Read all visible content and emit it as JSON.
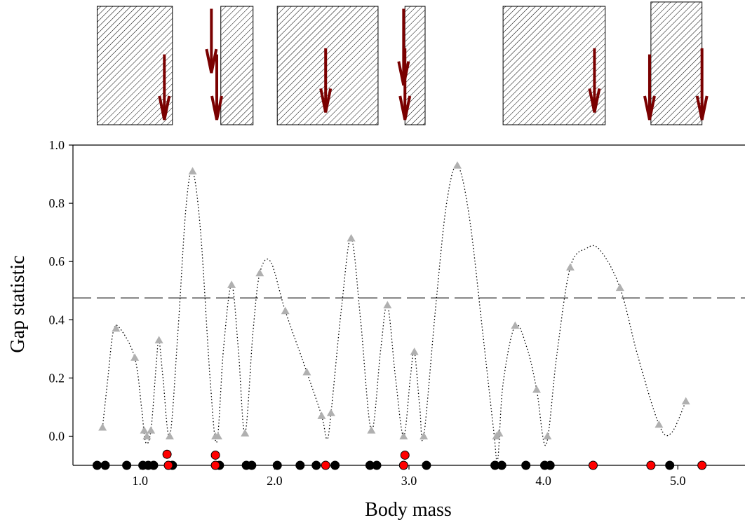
{
  "chart_data": {
    "type": "scatter",
    "xlabel": "Body mass",
    "ylabel": "Gap statistic",
    "xlim": [
      0.5,
      5.5
    ],
    "ylim": [
      -0.1,
      1.0
    ],
    "x_ticks": [
      1.0,
      2.0,
      3.0,
      4.0,
      5.0
    ],
    "x_tick_labels": [
      "1.0",
      "2.0",
      "3.0",
      "4.0",
      "5.0"
    ],
    "y_ticks": [
      0.0,
      0.2,
      0.4,
      0.6,
      0.8,
      1.0
    ],
    "y_tick_labels": [
      "0.0",
      "0.2",
      "0.4",
      "0.6",
      "0.8",
      "1.0"
    ],
    "threshold": 0.475,
    "colors": {
      "gap_points": "#b0b0b0",
      "species_black": "#000000",
      "species_red": "#ff0000",
      "arrows": "#7a0000",
      "curve": "#000000",
      "threshold_line": "#333333"
    },
    "gap_points": [
      {
        "x": 0.72,
        "y": 0.03
      },
      {
        "x": 0.82,
        "y": 0.37
      },
      {
        "x": 0.96,
        "y": 0.27
      },
      {
        "x": 1.03,
        "y": 0.02
      },
      {
        "x": 1.05,
        "y": 0.0
      },
      {
        "x": 1.08,
        "y": 0.02
      },
      {
        "x": 1.14,
        "y": 0.33
      },
      {
        "x": 1.22,
        "y": 0.0
      },
      {
        "x": 1.39,
        "y": 0.91
      },
      {
        "x": 1.56,
        "y": 0.0
      },
      {
        "x": 1.58,
        "y": 0.0
      },
      {
        "x": 1.68,
        "y": 0.52
      },
      {
        "x": 1.78,
        "y": 0.01
      },
      {
        "x": 1.89,
        "y": 0.56
      },
      {
        "x": 2.08,
        "y": 0.43
      },
      {
        "x": 2.24,
        "y": 0.22
      },
      {
        "x": 2.35,
        "y": 0.07
      },
      {
        "x": 2.42,
        "y": 0.08
      },
      {
        "x": 2.57,
        "y": 0.68
      },
      {
        "x": 2.72,
        "y": 0.02
      },
      {
        "x": 2.84,
        "y": 0.45
      },
      {
        "x": 2.96,
        "y": 0.0
      },
      {
        "x": 3.04,
        "y": 0.29
      },
      {
        "x": 3.11,
        "y": 0.0
      },
      {
        "x": 3.36,
        "y": 0.93
      },
      {
        "x": 3.65,
        "y": 0.0
      },
      {
        "x": 3.67,
        "y": 0.01
      },
      {
        "x": 3.79,
        "y": 0.38
      },
      {
        "x": 3.95,
        "y": 0.16
      },
      {
        "x": 4.03,
        "y": 0.0
      },
      {
        "x": 4.2,
        "y": 0.58
      },
      {
        "x": 4.57,
        "y": 0.51
      },
      {
        "x": 4.86,
        "y": 0.04
      },
      {
        "x": 5.06,
        "y": 0.12
      }
    ],
    "curve": [
      [
        0.72,
        0.03
      ],
      [
        0.76,
        0.2
      ],
      [
        0.8,
        0.36
      ],
      [
        0.85,
        0.37
      ],
      [
        0.96,
        0.27
      ],
      [
        1.01,
        0.1
      ],
      [
        1.04,
        -0.02
      ],
      [
        1.08,
        0.02
      ],
      [
        1.12,
        0.25
      ],
      [
        1.14,
        0.33
      ],
      [
        1.17,
        0.2
      ],
      [
        1.22,
        0.0
      ],
      [
        1.28,
        0.35
      ],
      [
        1.34,
        0.78
      ],
      [
        1.39,
        0.91
      ],
      [
        1.45,
        0.7
      ],
      [
        1.52,
        0.2
      ],
      [
        1.57,
        -0.02
      ],
      [
        1.62,
        0.3
      ],
      [
        1.68,
        0.52
      ],
      [
        1.73,
        0.3
      ],
      [
        1.78,
        0.01
      ],
      [
        1.84,
        0.36
      ],
      [
        1.89,
        0.56
      ],
      [
        1.97,
        0.6
      ],
      [
        2.08,
        0.43
      ],
      [
        2.24,
        0.22
      ],
      [
        2.35,
        0.07
      ],
      [
        2.39,
        -0.01
      ],
      [
        2.42,
        0.08
      ],
      [
        2.5,
        0.45
      ],
      [
        2.57,
        0.68
      ],
      [
        2.64,
        0.4
      ],
      [
        2.72,
        0.02
      ],
      [
        2.79,
        0.3
      ],
      [
        2.84,
        0.45
      ],
      [
        2.9,
        0.2
      ],
      [
        2.96,
        0.0
      ],
      [
        3.01,
        0.2
      ],
      [
        3.04,
        0.29
      ],
      [
        3.08,
        0.1
      ],
      [
        3.11,
        0.0
      ],
      [
        3.2,
        0.45
      ],
      [
        3.28,
        0.8
      ],
      [
        3.36,
        0.93
      ],
      [
        3.45,
        0.75
      ],
      [
        3.55,
        0.35
      ],
      [
        3.63,
        0.02
      ],
      [
        3.66,
        -0.08
      ],
      [
        3.7,
        0.18
      ],
      [
        3.79,
        0.38
      ],
      [
        3.88,
        0.3
      ],
      [
        3.95,
        0.16
      ],
      [
        4.02,
        -0.03
      ],
      [
        4.1,
        0.28
      ],
      [
        4.2,
        0.58
      ],
      [
        4.32,
        0.645
      ],
      [
        4.42,
        0.64
      ],
      [
        4.57,
        0.51
      ],
      [
        4.7,
        0.28
      ],
      [
        4.86,
        0.04
      ],
      [
        4.95,
        0.01
      ],
      [
        5.06,
        0.12
      ]
    ],
    "species_black": [
      0.68,
      0.74,
      0.9,
      1.02,
      1.06,
      1.1,
      1.24,
      1.59,
      1.79,
      1.83,
      2.02,
      2.19,
      2.31,
      2.45,
      2.71,
      2.76,
      3.13,
      3.64,
      3.69,
      3.87,
      4.01,
      4.05,
      4.94
    ],
    "species_red": [
      {
        "x": 1.21,
        "y": -0.1
      },
      {
        "x": 1.2,
        "y": -0.062
      },
      {
        "x": 1.56,
        "y": -0.1
      },
      {
        "x": 1.56,
        "y": -0.065
      },
      {
        "x": 2.38,
        "y": -0.1
      },
      {
        "x": 2.96,
        "y": -0.1
      },
      {
        "x": 2.97,
        "y": -0.065
      },
      {
        "x": 4.37,
        "y": -0.1
      },
      {
        "x": 4.8,
        "y": -0.1
      },
      {
        "x": 5.18,
        "y": -0.1
      }
    ],
    "gap_bars": [
      {
        "start": 0.68,
        "end": 1.24,
        "top": 0.96
      },
      {
        "start": 1.6,
        "end": 1.84,
        "top": 0.96
      },
      {
        "start": 2.02,
        "end": 2.77,
        "top": 0.96
      },
      {
        "start": 2.97,
        "end": 3.12,
        "top": 0.96
      },
      {
        "start": 3.7,
        "end": 4.46,
        "top": 0.96
      },
      {
        "start": 4.8,
        "end": 5.18,
        "top": 0.995
      }
    ],
    "arrows": [
      {
        "x": 1.18,
        "top": 0.57,
        "bottom": 0.04
      },
      {
        "x": 1.53,
        "top": 0.94,
        "bottom": 0.42
      },
      {
        "x": 1.57,
        "top": 0.57,
        "bottom": 0.04
      },
      {
        "x": 2.38,
        "top": 0.62,
        "bottom": 0.1
      },
      {
        "x": 2.96,
        "top": 0.94,
        "bottom": 0.32
      },
      {
        "x": 2.97,
        "top": 0.62,
        "bottom": 0.04
      },
      {
        "x": 4.38,
        "top": 0.62,
        "bottom": 0.1
      },
      {
        "x": 4.79,
        "top": 0.57,
        "bottom": 0.04
      },
      {
        "x": 5.18,
        "top": 0.62,
        "bottom": 0.04
      }
    ]
  }
}
